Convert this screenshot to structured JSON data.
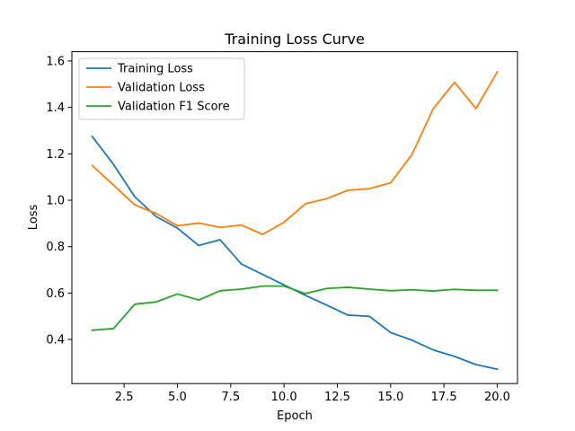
{
  "chart_data": {
    "type": "line",
    "title": "Training Loss Curve",
    "xlabel": "Epoch",
    "ylabel": "Loss",
    "xlim": [
      0.05,
      20.95
    ],
    "ylim": [
      0.21,
      1.64
    ],
    "xticks": [
      2.5,
      5.0,
      7.5,
      10.0,
      12.5,
      15.0,
      17.5,
      20.0
    ],
    "xtick_labels": [
      "2.5",
      "5.0",
      "7.5",
      "10.0",
      "12.5",
      "15.0",
      "17.5",
      "20.0"
    ],
    "yticks": [
      0.4,
      0.6,
      0.8,
      1.0,
      1.2,
      1.4,
      1.6
    ],
    "ytick_labels": [
      "0.4",
      "0.6",
      "0.8",
      "1.0",
      "1.2",
      "1.4",
      "1.6"
    ],
    "grid": false,
    "legend_position": "top-left",
    "x": [
      1,
      2,
      3,
      4,
      5,
      6,
      7,
      8,
      9,
      10,
      11,
      12,
      13,
      14,
      15,
      16,
      17,
      18,
      19,
      20
    ],
    "series": [
      {
        "name": "Training Loss",
        "color": "#1f77b4",
        "values": [
          1.275,
          1.155,
          1.015,
          0.93,
          0.88,
          0.805,
          0.83,
          0.725,
          0.68,
          0.635,
          0.59,
          0.548,
          0.505,
          0.5,
          0.43,
          0.397,
          0.355,
          0.327,
          0.292,
          0.272
        ]
      },
      {
        "name": "Validation Loss",
        "color": "#ff7f0e",
        "values": [
          1.15,
          1.065,
          0.98,
          0.943,
          0.89,
          0.902,
          0.883,
          0.893,
          0.853,
          0.905,
          0.985,
          1.007,
          1.043,
          1.05,
          1.075,
          1.197,
          1.395,
          1.508,
          1.395,
          1.553
        ]
      },
      {
        "name": "Validation F1 Score",
        "color": "#2ca02c",
        "values": [
          0.44,
          0.447,
          0.552,
          0.562,
          0.596,
          0.57,
          0.61,
          0.617,
          0.63,
          0.63,
          0.598,
          0.62,
          0.625,
          0.617,
          0.61,
          0.614,
          0.609,
          0.616,
          0.612,
          0.612
        ]
      }
    ]
  }
}
